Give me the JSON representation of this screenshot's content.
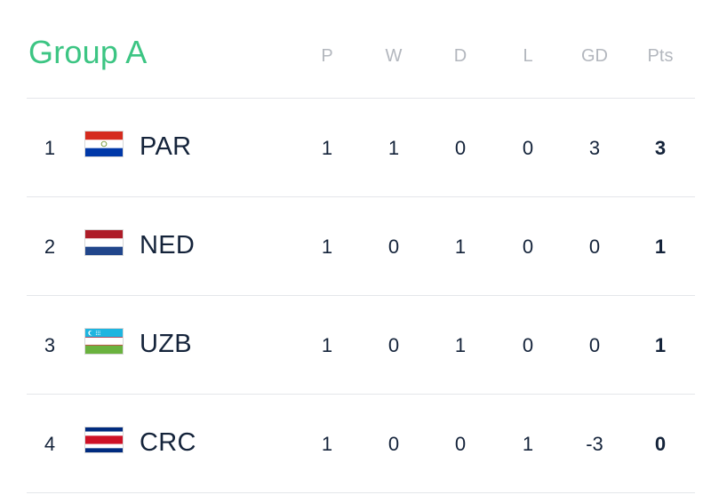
{
  "group": {
    "title": "Group A",
    "accent_color": "#3cc583"
  },
  "columns": [
    "P",
    "W",
    "D",
    "L",
    "GD",
    "Pts"
  ],
  "rows": [
    {
      "pos": "1",
      "code": "PAR",
      "flag": "paraguay-flag-icon",
      "stats": [
        "1",
        "1",
        "0",
        "0",
        "3",
        "3"
      ]
    },
    {
      "pos": "2",
      "code": "NED",
      "flag": "netherlands-flag-icon",
      "stats": [
        "1",
        "0",
        "1",
        "0",
        "0",
        "1"
      ]
    },
    {
      "pos": "3",
      "code": "UZB",
      "flag": "uzbekistan-flag-icon",
      "stats": [
        "1",
        "0",
        "1",
        "0",
        "0",
        "1"
      ]
    },
    {
      "pos": "4",
      "code": "CRC",
      "flag": "costa-rica-flag-icon",
      "stats": [
        "1",
        "0",
        "0",
        "1",
        "-3",
        "0"
      ]
    }
  ]
}
